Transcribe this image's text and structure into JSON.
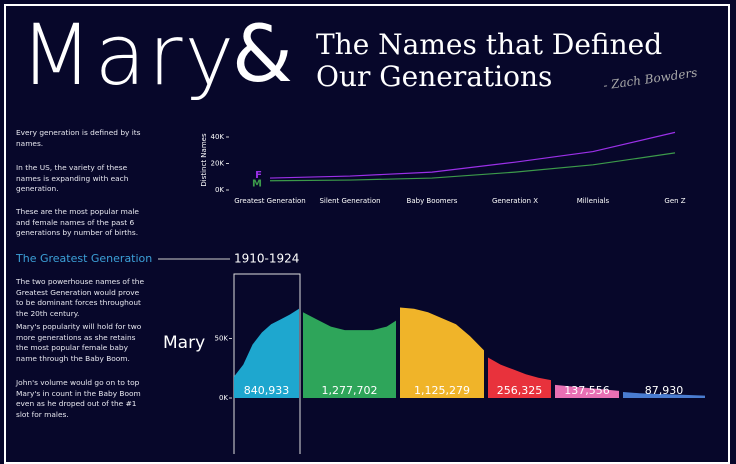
{
  "header": {
    "name": "Mary",
    "ampersand": "&",
    "title_lines": [
      "The Names that Defined",
      "Our Generations"
    ],
    "signature": "- Zach Bowders"
  },
  "intro": [
    "Every generation is defined by its names.",
    "In the US, the variety of these names is expanding with each generation.",
    "These are the most popular male and female names of the past 6 generations by number of births."
  ],
  "section": {
    "title": "The Greatest Generation",
    "period": "1910-1924",
    "paragraphs": [
      "The two powerhouse names of the Greatest Generation would prove to be dominant forces throughout the 20th century.",
      "Mary's popularity will hold for two more generations as she retains the most popular female baby name through the Baby Boom.",
      "John's volume would go on to top Mary's in count in the Baby Boom even as he droped out of the #1 slot for males."
    ]
  },
  "chart_data": [
    {
      "type": "line",
      "ylabel": "Distinct Names",
      "categories": [
        "Greatest Generation",
        "Silent Generation",
        "Baby Boomers",
        "Generation X",
        "Millenials",
        "Gen Z"
      ],
      "series": [
        {
          "name": "F",
          "color": "#9b30e8",
          "values": [
            9000,
            10500,
            13500,
            21000,
            29000,
            43500
          ]
        },
        {
          "name": "M",
          "color": "#3c9a4a",
          "values": [
            7000,
            7500,
            9000,
            13500,
            19000,
            28000
          ]
        }
      ],
      "ylim": [
        0,
        48000
      ],
      "yticks": [
        {
          "value": 0,
          "label": "0K"
        },
        {
          "value": 20000,
          "label": "20K"
        },
        {
          "value": 40000,
          "label": "40K"
        }
      ]
    },
    {
      "type": "area",
      "row_label": "Mary",
      "ylim": [
        0,
        82000
      ],
      "yticks": [
        {
          "value": 0,
          "label": "0K"
        },
        {
          "value": 50000,
          "label": "50K"
        }
      ],
      "series": [
        {
          "color": "#1ea7cf",
          "x": [
            1910,
            1912,
            1914,
            1916,
            1918,
            1920,
            1922,
            1924
          ],
          "values": [
            18000,
            28000,
            45000,
            55000,
            62000,
            66000,
            70000,
            75000
          ],
          "total": 840933,
          "total_label": "840,933"
        },
        {
          "color": "#2ea55a",
          "x": [
            1925,
            1928,
            1931,
            1934,
            1937,
            1940,
            1943,
            1945
          ],
          "values": [
            72000,
            66000,
            60000,
            57000,
            57000,
            57000,
            60000,
            65000
          ],
          "total": 1277702,
          "total_label": "1,277,702"
        },
        {
          "color": "#f0b429",
          "x": [
            1946,
            1949,
            1952,
            1955,
            1958,
            1961,
            1964
          ],
          "values": [
            76000,
            75000,
            72000,
            67000,
            62000,
            52000,
            40000
          ],
          "total": 1125279,
          "total_label": "1,125,279"
        },
        {
          "color": "#e8323c",
          "x": [
            1965,
            1968,
            1971,
            1974,
            1977,
            1980
          ],
          "values": [
            34000,
            28000,
            24000,
            20000,
            17000,
            15000
          ],
          "total": 256325,
          "total_label": "256,325"
        },
        {
          "color": "#e870b4",
          "x": [
            1981,
            1984,
            1987,
            1990,
            1993,
            1996
          ],
          "values": [
            11000,
            10000,
            9000,
            8000,
            7000,
            6000
          ],
          "total": 137556,
          "total_label": "137,556"
        },
        {
          "color": "#4a7cd0",
          "x": [
            1997,
            2000,
            2003,
            2006,
            2009,
            2012
          ],
          "values": [
            5000,
            4000,
            3500,
            3000,
            2500,
            2000
          ],
          "total": 87930,
          "total_label": "87,930"
        }
      ]
    }
  ]
}
